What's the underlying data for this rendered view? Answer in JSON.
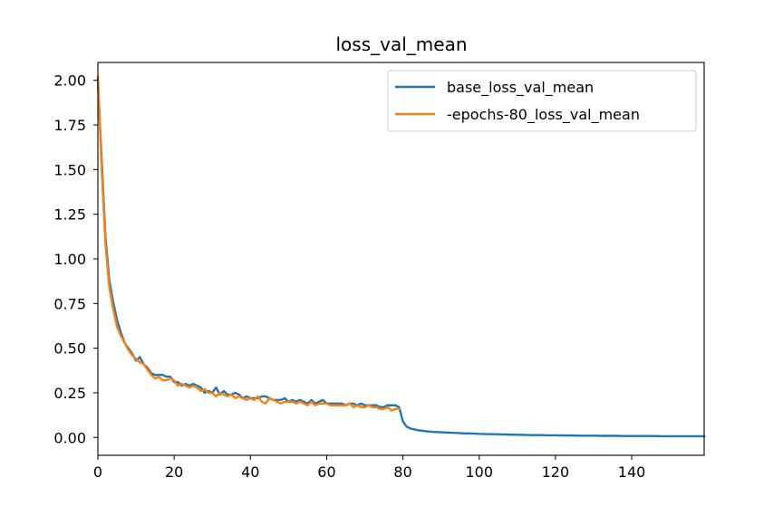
{
  "chart_data": {
    "type": "line",
    "title": "loss_val_mean",
    "xlabel": "",
    "ylabel": "",
    "xlim": [
      0,
      159
    ],
    "ylim": [
      -0.1,
      2.1
    ],
    "x_ticks": [
      0,
      20,
      40,
      60,
      80,
      100,
      120,
      140
    ],
    "x_tick_labels": [
      "0",
      "20",
      "40",
      "60",
      "80",
      "100",
      "120",
      "140"
    ],
    "y_ticks": [
      0.0,
      0.25,
      0.5,
      0.75,
      1.0,
      1.25,
      1.5,
      1.75,
      2.0
    ],
    "y_tick_labels": [
      "0.00",
      "0.25",
      "0.50",
      "0.75",
      "1.00",
      "1.25",
      "1.50",
      "1.75",
      "2.00"
    ],
    "grid": false,
    "legend_position": "top-right",
    "series": [
      {
        "name": "base_loss_val_mean",
        "color": "#1f77b4",
        "x": [
          0,
          1,
          2,
          3,
          4,
          5,
          6,
          7,
          8,
          9,
          10,
          11,
          12,
          13,
          14,
          15,
          16,
          17,
          18,
          19,
          20,
          21,
          22,
          23,
          24,
          25,
          26,
          27,
          28,
          29,
          30,
          31,
          32,
          33,
          34,
          35,
          36,
          37,
          38,
          39,
          40,
          41,
          42,
          43,
          44,
          45,
          46,
          47,
          48,
          49,
          50,
          51,
          52,
          53,
          54,
          55,
          56,
          57,
          58,
          59,
          60,
          61,
          62,
          63,
          64,
          65,
          66,
          67,
          68,
          69,
          70,
          71,
          72,
          73,
          74,
          75,
          76,
          77,
          78,
          79,
          80,
          81,
          82,
          83,
          84,
          85,
          86,
          87,
          88,
          89,
          90,
          92,
          94,
          96,
          98,
          100,
          102,
          104,
          106,
          108,
          110,
          112,
          114,
          116,
          118,
          120,
          122,
          124,
          126,
          128,
          130,
          132,
          134,
          136,
          138,
          140,
          142,
          144,
          146,
          148,
          150,
          152,
          154,
          156,
          158,
          159
        ],
        "y": [
          2.0,
          1.55,
          1.12,
          0.88,
          0.76,
          0.66,
          0.59,
          0.53,
          0.5,
          0.47,
          0.43,
          0.45,
          0.41,
          0.39,
          0.36,
          0.35,
          0.35,
          0.35,
          0.34,
          0.34,
          0.31,
          0.31,
          0.29,
          0.3,
          0.29,
          0.3,
          0.29,
          0.28,
          0.25,
          0.26,
          0.25,
          0.28,
          0.24,
          0.26,
          0.24,
          0.24,
          0.25,
          0.24,
          0.22,
          0.23,
          0.22,
          0.22,
          0.22,
          0.23,
          0.23,
          0.22,
          0.21,
          0.21,
          0.21,
          0.22,
          0.2,
          0.21,
          0.2,
          0.21,
          0.2,
          0.19,
          0.21,
          0.19,
          0.2,
          0.21,
          0.19,
          0.19,
          0.19,
          0.19,
          0.19,
          0.18,
          0.19,
          0.19,
          0.18,
          0.19,
          0.18,
          0.18,
          0.18,
          0.18,
          0.17,
          0.17,
          0.18,
          0.18,
          0.18,
          0.17,
          0.09,
          0.06,
          0.05,
          0.045,
          0.04,
          0.038,
          0.035,
          0.033,
          0.031,
          0.03,
          0.029,
          0.027,
          0.025,
          0.023,
          0.022,
          0.02,
          0.019,
          0.018,
          0.017,
          0.016,
          0.015,
          0.014,
          0.013,
          0.013,
          0.012,
          0.012,
          0.011,
          0.011,
          0.01,
          0.01,
          0.01,
          0.009,
          0.009,
          0.009,
          0.008,
          0.008,
          0.008,
          0.008,
          0.008,
          0.007,
          0.007,
          0.007,
          0.007,
          0.007,
          0.007,
          0.007
        ]
      },
      {
        "name": "-epochs-80_loss_val_mean",
        "color": "#ff7f0e",
        "x": [
          0,
          1,
          2,
          3,
          4,
          5,
          6,
          7,
          8,
          9,
          10,
          11,
          12,
          13,
          14,
          15,
          16,
          17,
          18,
          19,
          20,
          21,
          22,
          23,
          24,
          25,
          26,
          27,
          28,
          29,
          30,
          31,
          32,
          33,
          34,
          35,
          36,
          37,
          38,
          39,
          40,
          41,
          42,
          43,
          44,
          45,
          46,
          47,
          48,
          49,
          50,
          51,
          52,
          53,
          54,
          55,
          56,
          57,
          58,
          59,
          60,
          61,
          62,
          63,
          64,
          65,
          66,
          67,
          68,
          69,
          70,
          71,
          72,
          73,
          74,
          75,
          76,
          77,
          78,
          79
        ],
        "y": [
          2.02,
          1.5,
          1.08,
          0.84,
          0.72,
          0.62,
          0.57,
          0.53,
          0.49,
          0.46,
          0.44,
          0.42,
          0.41,
          0.38,
          0.35,
          0.33,
          0.34,
          0.32,
          0.32,
          0.33,
          0.32,
          0.29,
          0.3,
          0.29,
          0.28,
          0.29,
          0.28,
          0.26,
          0.27,
          0.25,
          0.25,
          0.23,
          0.25,
          0.24,
          0.23,
          0.24,
          0.22,
          0.23,
          0.22,
          0.21,
          0.22,
          0.21,
          0.23,
          0.2,
          0.19,
          0.22,
          0.21,
          0.2,
          0.19,
          0.2,
          0.2,
          0.2,
          0.19,
          0.2,
          0.19,
          0.18,
          0.2,
          0.18,
          0.19,
          0.19,
          0.19,
          0.18,
          0.18,
          0.18,
          0.18,
          0.18,
          0.19,
          0.17,
          0.18,
          0.17,
          0.17,
          0.18,
          0.17,
          0.17,
          0.16,
          0.16,
          0.17,
          0.15,
          0.16,
          0.16
        ]
      }
    ]
  }
}
